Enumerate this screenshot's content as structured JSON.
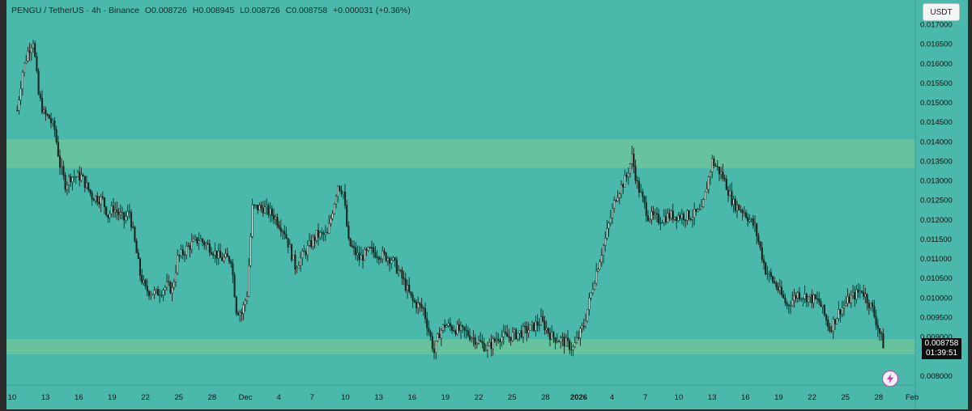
{
  "header": {
    "symbol": "PENGU / TetherUS · 4h · Binance",
    "open": "O0.008726",
    "high": "H0.008945",
    "low": "L0.008726",
    "close": "C0.008758",
    "change": "+0.000031 (+0.36%)"
  },
  "currency_button": "USDT",
  "last_price": "0.008758",
  "countdown": "01:39:51",
  "colors": {
    "background": "#4ab8ab",
    "zone": "#6cc49a",
    "candle": "#15261f",
    "axis_text": "#111111"
  },
  "chart_data": {
    "type": "candlestick",
    "y_axis": {
      "ticks": [
        "0.017000",
        "0.016500",
        "0.016000",
        "0.015500",
        "0.015000",
        "0.014500",
        "0.014000",
        "0.013500",
        "0.013000",
        "0.012500",
        "0.012000",
        "0.011500",
        "0.011000",
        "0.010500",
        "0.010000",
        "0.009500",
        "0.009000",
        "0.008000"
      ],
      "tick_values": [
        0.017,
        0.0165,
        0.016,
        0.0155,
        0.015,
        0.0145,
        0.014,
        0.0135,
        0.013,
        0.0125,
        0.012,
        0.0115,
        0.011,
        0.0105,
        0.01,
        0.0095,
        0.009,
        0.008
      ],
      "range": [
        0.0078,
        0.01725
      ]
    },
    "x_axis": {
      "ticks": [
        "10",
        "13",
        "16",
        "19",
        "22",
        "25",
        "28",
        "Dec",
        "4",
        "7",
        "10",
        "13",
        "16",
        "19",
        "22",
        "25",
        "28",
        "2026",
        "4",
        "7",
        "10",
        "13",
        "16",
        "19",
        "22",
        "25",
        "28",
        "Feb"
      ],
      "bold": [
        "2026"
      ],
      "range": [
        "2025-11-09",
        "2026-02-02"
      ]
    },
    "zones": [
      {
        "top": 0.01405,
        "bottom": 0.01332
      },
      {
        "top": 0.00893,
        "bottom": 0.00855
      }
    ],
    "close_path": [
      [
        "2025-11-10",
        0.0148
      ],
      [
        "2025-11-10T12",
        0.0158
      ],
      [
        "2025-11-11",
        0.0163
      ],
      [
        "2025-11-11T12",
        0.0166
      ],
      [
        "2025-11-12",
        0.0152
      ],
      [
        "2025-11-12T12",
        0.0147
      ],
      [
        "2025-11-13",
        0.0146
      ],
      [
        "2025-11-13T12",
        0.0143
      ],
      [
        "2025-11-14",
        0.0134
      ],
      [
        "2025-11-14T12",
        0.0129
      ],
      [
        "2025-11-15",
        0.0131
      ],
      [
        "2025-11-16",
        0.0131
      ],
      [
        "2025-11-17",
        0.0126
      ],
      [
        "2025-11-18",
        0.0125
      ],
      [
        "2025-11-18T12",
        0.0121
      ],
      [
        "2025-11-19",
        0.0123
      ],
      [
        "2025-11-20",
        0.012
      ],
      [
        "2025-11-20T12",
        0.0122
      ],
      [
        "2025-11-21",
        0.0114
      ],
      [
        "2025-11-21T12",
        0.0106
      ],
      [
        "2025-11-22",
        0.0102
      ],
      [
        "2025-11-23",
        0.0101
      ],
      [
        "2025-11-24",
        0.0103
      ],
      [
        "2025-11-24T12",
        0.0102
      ],
      [
        "2025-11-25",
        0.011
      ],
      [
        "2025-11-26",
        0.0113
      ],
      [
        "2025-11-27",
        0.0115
      ],
      [
        "2025-11-28",
        0.0113
      ],
      [
        "2025-11-29",
        0.011
      ],
      [
        "2025-11-30",
        0.011
      ],
      [
        "2025-11-30T12",
        0.0097
      ],
      [
        "2025-12-01",
        0.0096
      ],
      [
        "2025-12-01T12",
        0.0101
      ],
      [
        "2025-12-02",
        0.0123
      ],
      [
        "2025-12-03",
        0.0123
      ],
      [
        "2025-12-04",
        0.0121
      ],
      [
        "2025-12-05",
        0.0117
      ],
      [
        "2025-12-06",
        0.0108
      ],
      [
        "2025-12-07",
        0.0112
      ],
      [
        "2025-12-08",
        0.0116
      ],
      [
        "2025-12-09",
        0.0116
      ],
      [
        "2025-12-10",
        0.0129
      ],
      [
        "2025-12-10T12",
        0.0127
      ],
      [
        "2025-12-11",
        0.0114
      ],
      [
        "2025-12-12",
        0.011
      ],
      [
        "2025-12-13",
        0.0112
      ],
      [
        "2025-12-14",
        0.0111
      ],
      [
        "2025-12-15",
        0.011
      ],
      [
        "2025-12-16",
        0.0105
      ],
      [
        "2025-12-17",
        0.0099
      ],
      [
        "2025-12-18",
        0.0097
      ],
      [
        "2025-12-19",
        0.0086
      ],
      [
        "2025-12-19T12",
        0.0091
      ],
      [
        "2025-12-20",
        0.0093
      ],
      [
        "2025-12-21",
        0.0092
      ],
      [
        "2025-12-22",
        0.0091
      ],
      [
        "2025-12-23",
        0.0089
      ],
      [
        "2025-12-24",
        0.0087
      ],
      [
        "2025-12-25",
        0.009
      ],
      [
        "2025-12-26",
        0.009
      ],
      [
        "2025-12-27",
        0.0091
      ],
      [
        "2025-12-28",
        0.0092
      ],
      [
        "2025-12-29",
        0.0094
      ],
      [
        "2025-12-30",
        0.009
      ],
      [
        "2025-12-31",
        0.0089
      ],
      [
        "2026-01-01",
        0.0087
      ],
      [
        "2026-01-02",
        0.0093
      ],
      [
        "2026-01-03",
        0.0105
      ],
      [
        "2026-01-04",
        0.0115
      ],
      [
        "2026-01-05",
        0.0126
      ],
      [
        "2026-01-06",
        0.0131
      ],
      [
        "2026-01-06T12",
        0.0136
      ],
      [
        "2026-01-07",
        0.0129
      ],
      [
        "2026-01-08",
        0.0121
      ],
      [
        "2026-01-09",
        0.012
      ],
      [
        "2026-01-10",
        0.0121
      ],
      [
        "2026-01-11",
        0.0121
      ],
      [
        "2026-01-12",
        0.0121
      ],
      [
        "2026-01-13",
        0.0122
      ],
      [
        "2026-01-14",
        0.0135
      ],
      [
        "2026-01-15",
        0.0131
      ],
      [
        "2026-01-16",
        0.0124
      ],
      [
        "2026-01-17",
        0.0122
      ],
      [
        "2026-01-18",
        0.0118
      ],
      [
        "2026-01-19",
        0.0107
      ],
      [
        "2026-01-20",
        0.0103
      ],
      [
        "2026-01-21",
        0.0098
      ],
      [
        "2026-01-22",
        0.0101
      ],
      [
        "2026-01-23",
        0.01
      ],
      [
        "2026-01-24",
        0.0099
      ],
      [
        "2026-01-25",
        0.0092
      ],
      [
        "2026-01-26",
        0.0097
      ],
      [
        "2026-01-27",
        0.01
      ],
      [
        "2026-01-28",
        0.0102
      ],
      [
        "2026-01-29",
        0.0097
      ],
      [
        "2026-01-30",
        0.0088
      ]
    ]
  }
}
